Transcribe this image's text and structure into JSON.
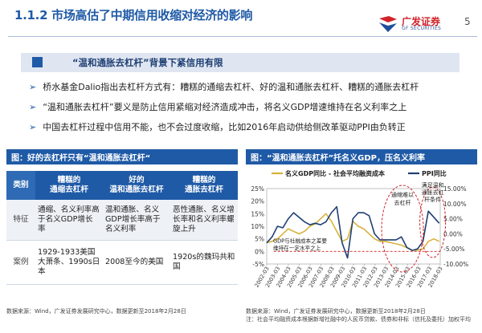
{
  "header": {
    "title": "1.1.2 市场高估了中期信用收缩对经济的影响",
    "logo_cn": "广发证券",
    "logo_en": "GF SECURITIES",
    "page_number": "5"
  },
  "section": {
    "heading": "“温和通胀去杠杆”背景下紧信用有限"
  },
  "bullets": [
    "桥水基金Dalio指出去杠杆方式有：糟糕的通缩去杠杆、好的温和通胀去杠杆、糟糕的通胀去杠杆",
    "“温和通胀去杠杆”要义是防止信用紧缩对经济造成冲击，将名义GDP增速维持在名义利率之上",
    "中国去杠杆过程中信用不能，也不会过度收缩，比如2016年启动供给侧改革驱动PPI由负转正"
  ],
  "left_figure": {
    "caption": "图：好的去杠杆只有“温和通胀去杠杆“",
    "table": {
      "headers": [
        "类别",
        "糟糕的\n通缩去杠杆",
        "好的\n温和通胀去杠杆",
        "糟糕的\n通胀去杠杆"
      ],
      "rows": [
        {
          "label": "特征",
          "cells": [
            "通缩、名义利率高于名义GDP增长率",
            "温和通胀、名义GDP增长率高于名义利率",
            "恶性通胀、名义增长率和名义利率螺旋上升"
          ]
        },
        {
          "label": "案例",
          "cells": [
            "1929-1933美国大萧条、1990s日本",
            "2008至今的美国",
            "1920s的魏玛共和国"
          ]
        }
      ]
    },
    "source": "数据来源：Wind，广发证券发展研究中心，数据更新至2018年2月28日"
  },
  "right_figure": {
    "caption": "图：“温和通胀去杠杆”托名义GDP，压名义利率",
    "source": "数据来源：Wind，广发证券发展研究中心，数据更新至2018年2月28日",
    "note": "注：社会平均融资成本根据新增社融中的人民币贷款、债券和非标（信托及委托）加权平均",
    "annotations": {
      "a1": "通缩难以\n去杠杆",
      "a2": "满足温和\n通胀去杠\n杆条件",
      "a3": "GDP与社融成本之差要\n维持在一定水平之上"
    },
    "chart_data": {
      "type": "line",
      "title": "",
      "legend": [
        "名义GDP同比 - 社会平均融资成本",
        "PPI同比"
      ],
      "x_ticks": [
        "2002-03",
        "2003-03",
        "2004-03",
        "2005-03",
        "2006-03",
        "2007-03",
        "2008-03",
        "2009-03",
        "2010-03",
        "2011-03",
        "2012-03",
        "2013-03",
        "2014-03",
        "2015-03",
        "2016-03",
        "2017-03",
        "2018-03"
      ],
      "y_left": {
        "ticks": [
          "25%",
          "20%",
          "15%",
          "10%",
          "5%",
          "0%",
          "-5%"
        ],
        "range": [
          -5,
          25
        ]
      },
      "y_right": {
        "ticks": [
          "15.00%",
          "10.00%",
          "5.00%",
          "0.00%",
          "-5.00%",
          "-10.00%"
        ],
        "range": [
          -10,
          15
        ]
      },
      "series": [
        {
          "name": "名义GDP同比 - 社会平均融资成本",
          "axis": "left",
          "color": "#d6b23a",
          "x": [
            2002.0,
            2002.5,
            2003.0,
            2003.5,
            2004.0,
            2004.5,
            2005.0,
            2005.5,
            2006.0,
            2006.5,
            2007.0,
            2007.5,
            2008.0,
            2008.5,
            2009.0,
            2009.5,
            2010.0,
            2010.5,
            2011.0,
            2011.5,
            2012.0,
            2012.5,
            2013.0,
            2013.5,
            2014.0,
            2014.5,
            2015.0,
            2015.5,
            2016.0,
            2016.5,
            2017.0,
            2017.5,
            2018.0
          ],
          "values": [
            3.5,
            4,
            5,
            7,
            9,
            8,
            7,
            8,
            10,
            11,
            13,
            15,
            12,
            8,
            4,
            5,
            12,
            10,
            9,
            7,
            5,
            4,
            4,
            3.5,
            3,
            2.5,
            1.5,
            0.5,
            0.5,
            1,
            4,
            5,
            4
          ]
        },
        {
          "name": "PPI同比",
          "axis": "right",
          "color": "#1f3f73",
          "x": [
            2002.0,
            2002.5,
            2003.0,
            2003.5,
            2004.0,
            2004.5,
            2005.0,
            2005.5,
            2006.0,
            2006.5,
            2007.0,
            2007.5,
            2008.0,
            2008.5,
            2009.0,
            2009.5,
            2010.0,
            2010.5,
            2011.0,
            2011.5,
            2012.0,
            2012.5,
            2013.0,
            2013.5,
            2014.0,
            2014.5,
            2015.0,
            2015.5,
            2016.0,
            2016.5,
            2017.0,
            2017.5,
            2018.0
          ],
          "values": [
            -3,
            -1,
            2.5,
            2,
            5,
            7,
            5.5,
            4,
            3,
            3.5,
            3,
            4,
            7,
            9,
            -3,
            -8,
            5,
            7,
            7,
            6,
            0,
            -2,
            -2,
            -2,
            -2,
            -1,
            -4.5,
            -5.5,
            -5,
            -2.5,
            7.5,
            5.5,
            3.5
          ]
        }
      ]
    }
  }
}
